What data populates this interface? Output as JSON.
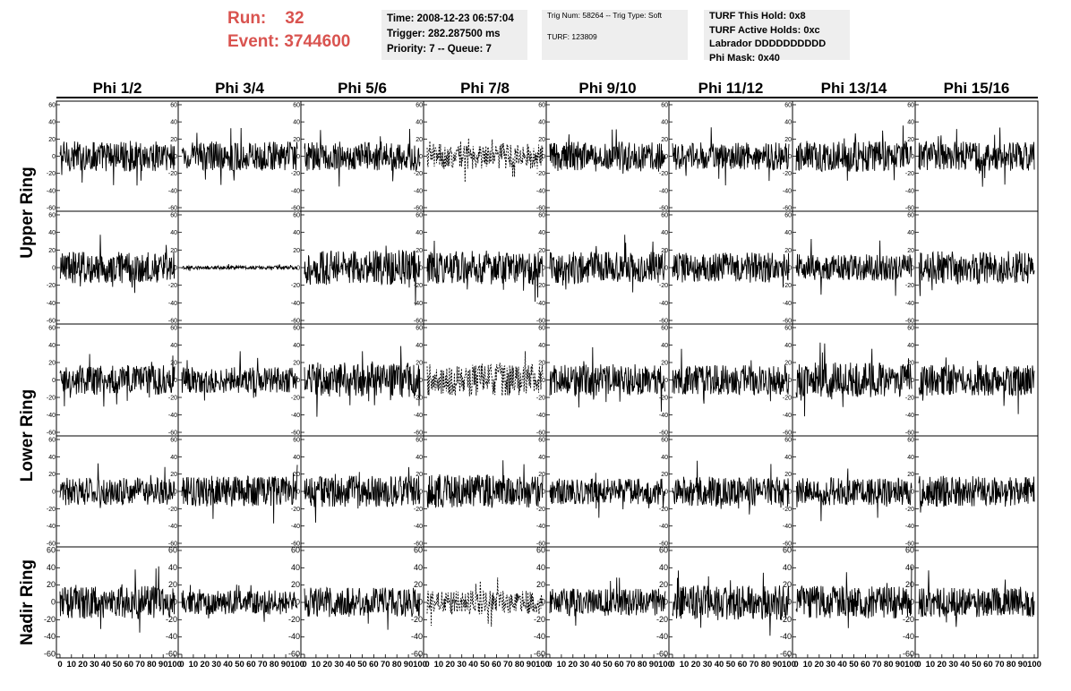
{
  "header": {
    "run_label": "Run:",
    "run_value": "32",
    "event_label": "Event:",
    "event_value": "3744600",
    "time_line": "Time: 2008-12-23 06:57:04",
    "trigger_line": "Trigger: 282.287500 ms",
    "priority_line": "Priority: 7 -- Queue: 7",
    "trig_line": "Trig Num: 58264 -- Trig Type: Soft",
    "turf_line": "TURF: 123809",
    "turf_hold_line": "TURF This Hold: 0x8",
    "turf_active_line": "TURF Active Holds: 0xc",
    "labrador_line": "Labrador DDDDDDDDDD",
    "phi_mask_line": "Phi Mask: 0x40"
  },
  "chart_data": {
    "type": "line",
    "columns": [
      "Phi 1/2",
      "Phi 3/4",
      "Phi 5/6",
      "Phi 7/8",
      "Phi 9/10",
      "Phi 11/12",
      "Phi 13/14",
      "Phi 15/16"
    ],
    "rows": [
      {
        "label": "Upper Ring",
        "rows_spanned": 2
      },
      {
        "label": "Lower Ring",
        "rows_spanned": 2
      },
      {
        "label": "Nadir Ring",
        "rows_spanned": 1
      }
    ],
    "ylim": [
      -60,
      60
    ],
    "yticks": [
      -60,
      -40,
      -20,
      0,
      20,
      40,
      60
    ],
    "xlim": [
      0,
      100
    ],
    "xticks": [
      0,
      10,
      20,
      30,
      40,
      50,
      60,
      70,
      80,
      90,
      100
    ],
    "grid": false,
    "panels": [
      {
        "row": 0,
        "col": 0,
        "amp": 18,
        "style": "solid"
      },
      {
        "row": 0,
        "col": 1,
        "amp": 17,
        "style": "solid"
      },
      {
        "row": 0,
        "col": 2,
        "amp": 17,
        "style": "solid"
      },
      {
        "row": 0,
        "col": 3,
        "amp": 15,
        "style": "dashed"
      },
      {
        "row": 0,
        "col": 4,
        "amp": 18,
        "style": "solid"
      },
      {
        "row": 0,
        "col": 5,
        "amp": 16,
        "style": "solid"
      },
      {
        "row": 0,
        "col": 6,
        "amp": 18,
        "style": "solid"
      },
      {
        "row": 0,
        "col": 7,
        "amp": 17,
        "style": "solid"
      },
      {
        "row": 1,
        "col": 0,
        "amp": 18,
        "style": "solid"
      },
      {
        "row": 1,
        "col": 1,
        "amp": 2,
        "style": "solid"
      },
      {
        "row": 1,
        "col": 2,
        "amp": 20,
        "style": "solid"
      },
      {
        "row": 1,
        "col": 3,
        "amp": 19,
        "style": "solid"
      },
      {
        "row": 1,
        "col": 4,
        "amp": 18,
        "style": "solid"
      },
      {
        "row": 1,
        "col": 5,
        "amp": 17,
        "style": "solid"
      },
      {
        "row": 1,
        "col": 6,
        "amp": 15,
        "style": "solid"
      },
      {
        "row": 1,
        "col": 7,
        "amp": 19,
        "style": "solid"
      },
      {
        "row": 2,
        "col": 0,
        "amp": 17,
        "style": "solid"
      },
      {
        "row": 2,
        "col": 1,
        "amp": 15,
        "style": "solid"
      },
      {
        "row": 2,
        "col": 2,
        "amp": 20,
        "style": "solid"
      },
      {
        "row": 2,
        "col": 3,
        "amp": 18,
        "style": "dashed"
      },
      {
        "row": 2,
        "col": 4,
        "amp": 18,
        "style": "solid"
      },
      {
        "row": 2,
        "col": 5,
        "amp": 17,
        "style": "solid"
      },
      {
        "row": 2,
        "col": 6,
        "amp": 20,
        "style": "solid"
      },
      {
        "row": 2,
        "col": 7,
        "amp": 18,
        "style": "solid"
      },
      {
        "row": 3,
        "col": 0,
        "amp": 16,
        "style": "solid"
      },
      {
        "row": 3,
        "col": 1,
        "amp": 18,
        "style": "solid"
      },
      {
        "row": 3,
        "col": 2,
        "amp": 18,
        "style": "solid"
      },
      {
        "row": 3,
        "col": 3,
        "amp": 19,
        "style": "solid"
      },
      {
        "row": 3,
        "col": 4,
        "amp": 15,
        "style": "solid"
      },
      {
        "row": 3,
        "col": 5,
        "amp": 17,
        "style": "solid"
      },
      {
        "row": 3,
        "col": 6,
        "amp": 16,
        "style": "solid"
      },
      {
        "row": 3,
        "col": 7,
        "amp": 18,
        "style": "solid"
      },
      {
        "row": 4,
        "col": 0,
        "amp": 19,
        "style": "solid"
      },
      {
        "row": 4,
        "col": 1,
        "amp": 14,
        "style": "solid"
      },
      {
        "row": 4,
        "col": 2,
        "amp": 17,
        "style": "solid"
      },
      {
        "row": 4,
        "col": 3,
        "amp": 14,
        "style": "dashed"
      },
      {
        "row": 4,
        "col": 4,
        "amp": 16,
        "style": "solid"
      },
      {
        "row": 4,
        "col": 5,
        "amp": 20,
        "style": "solid"
      },
      {
        "row": 4,
        "col": 6,
        "amp": 19,
        "style": "solid"
      },
      {
        "row": 4,
        "col": 7,
        "amp": 17,
        "style": "solid"
      }
    ]
  }
}
